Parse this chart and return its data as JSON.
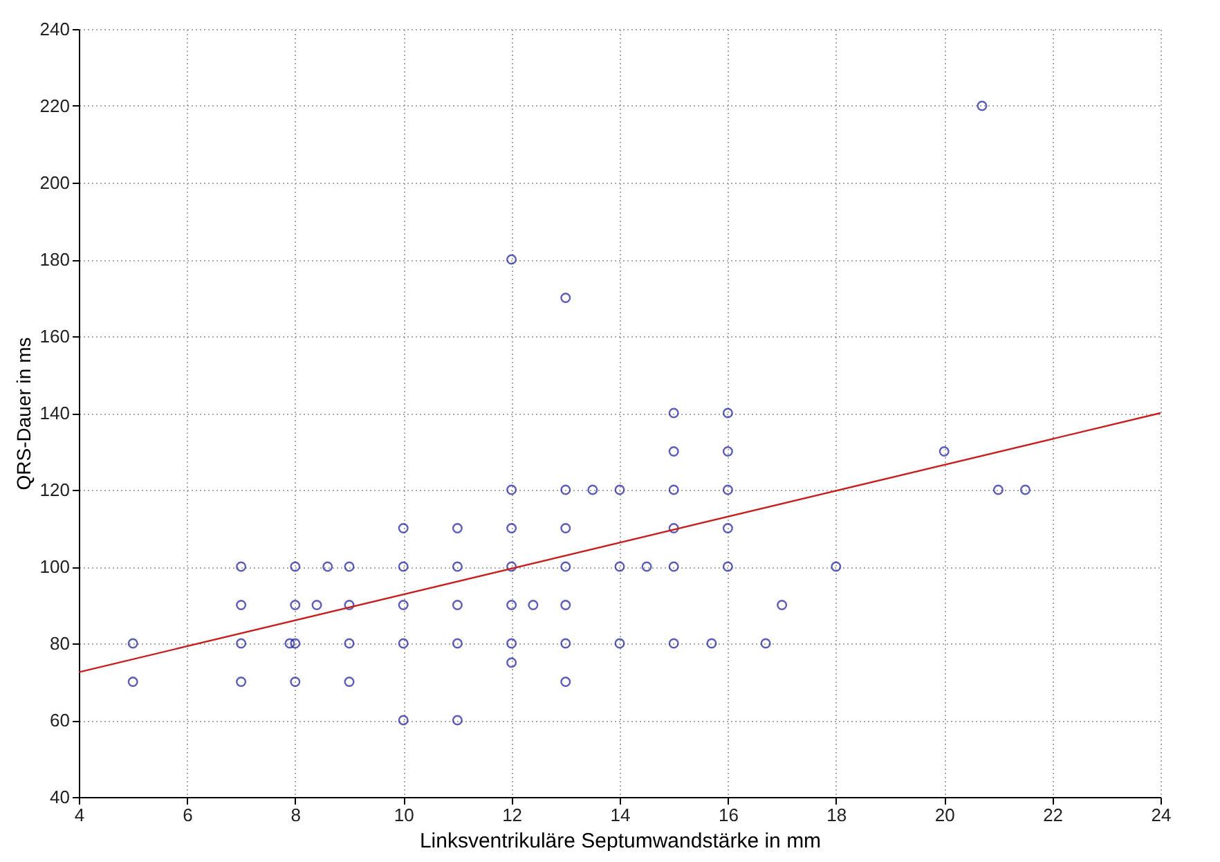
{
  "chart_data": {
    "type": "scatter",
    "xlabel": "Linksventrikuläre Septumwandstärke in mm",
    "ylabel": "QRS-Dauer in ms",
    "xlim": [
      4,
      24
    ],
    "xticks": [
      4,
      6,
      8,
      10,
      12,
      14,
      16,
      18,
      20,
      22,
      24
    ],
    "ylim": [
      40,
      240
    ],
    "yticks": [
      40,
      60,
      80,
      100,
      120,
      140,
      160,
      180,
      200,
      220,
      240
    ],
    "grid": true,
    "series": [
      {
        "color": "#1a1aa0",
        "marker": "circle",
        "x": [
          5,
          5,
          7,
          7,
          7,
          7,
          7.9,
          8,
          8,
          8,
          8,
          8.4,
          8.6,
          9,
          9,
          9,
          9,
          10,
          10,
          10,
          10,
          10,
          11,
          11,
          11,
          11,
          11,
          12,
          12,
          12,
          12,
          12,
          12,
          12,
          12.4,
          13,
          13,
          13,
          13,
          13,
          13,
          13,
          13.5,
          14,
          14,
          14,
          14.5,
          15,
          15,
          15,
          15,
          15,
          15,
          15.7,
          16,
          16,
          16,
          16,
          16,
          16.7,
          17,
          18,
          20,
          20.7,
          21,
          21.5
        ],
        "values": [
          80,
          70,
          100,
          90,
          80,
          70,
          80,
          80,
          100,
          90,
          70,
          90,
          100,
          100,
          90,
          80,
          70,
          110,
          100,
          90,
          80,
          60,
          110,
          100,
          90,
          80,
          60,
          180,
          120,
          110,
          100,
          90,
          80,
          75,
          90,
          170,
          120,
          110,
          100,
          90,
          80,
          70,
          120,
          120,
          100,
          80,
          100,
          140,
          130,
          120,
          110,
          100,
          80,
          80,
          140,
          130,
          120,
          110,
          100,
          80,
          90,
          100,
          130,
          220,
          120,
          120
        ]
      },
      {
        "type": "line",
        "color": "#c81e1e",
        "x": [
          4,
          24
        ],
        "values": [
          72.5,
          140
        ]
      }
    ]
  }
}
